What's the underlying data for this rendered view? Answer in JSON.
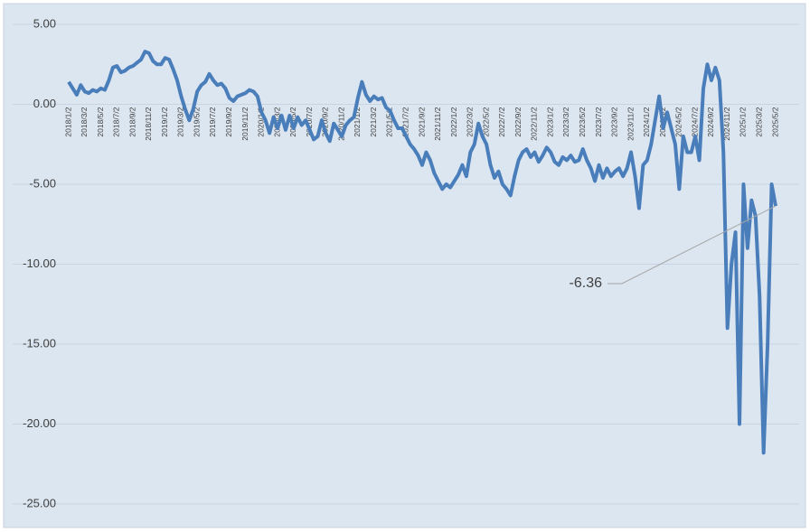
{
  "chart_data": {
    "type": "line",
    "categories": [
      "2018/1/2",
      null,
      null,
      null,
      "2018/3/2",
      null,
      null,
      null,
      "2018/5/2",
      null,
      null,
      null,
      "2018/7/2",
      null,
      null,
      null,
      "2018/9/2",
      null,
      null,
      null,
      "2018/11/2",
      null,
      null,
      null,
      "2019/1/2",
      null,
      null,
      null,
      "2019/3/2",
      null,
      null,
      null,
      "2019/5/2",
      null,
      null,
      null,
      "2019/7/2",
      null,
      null,
      null,
      "2019/9/2",
      null,
      null,
      null,
      "2019/11/2",
      null,
      null,
      null,
      "2020/1/2",
      null,
      null,
      null,
      "2020/3/2",
      null,
      null,
      null,
      "2020/5/2",
      null,
      null,
      null,
      "2020/7/2",
      null,
      null,
      null,
      "2020/9/2",
      null,
      null,
      null,
      "2020/11/2",
      null,
      null,
      null,
      "2021/1/2",
      null,
      null,
      null,
      "2021/3/2",
      null,
      null,
      null,
      "2021/5/2",
      null,
      null,
      null,
      "2021/7/2",
      null,
      null,
      null,
      "2021/9/2",
      null,
      null,
      null,
      "2021/11/2",
      null,
      null,
      null,
      "2022/1/2",
      null,
      null,
      null,
      "2022/3/2",
      null,
      null,
      null,
      "2022/5/2",
      null,
      null,
      null,
      "2022/7/2",
      null,
      null,
      null,
      "2022/9/2",
      null,
      null,
      null,
      "2022/11/2",
      null,
      null,
      null,
      "2023/1/2",
      null,
      null,
      null,
      "2023/3/2",
      null,
      null,
      null,
      "2023/5/2",
      null,
      null,
      null,
      "2023/7/2",
      null,
      null,
      null,
      "2023/9/2",
      null,
      null,
      null,
      "2023/11/2",
      null,
      null,
      null,
      "2024/1/2",
      null,
      null,
      null,
      "2024/3/2",
      null,
      null,
      null,
      "2024/5/2",
      null,
      null,
      null,
      "2024/7/2",
      null,
      null,
      null,
      "2024/9/2",
      null,
      null,
      null,
      "2024/11/2",
      null,
      null,
      null,
      "2025/1/2",
      null,
      null,
      null,
      "2025/3/2",
      null,
      null,
      null,
      "2025/5/2"
    ],
    "series": [
      {
        "color": "#4a7ebb",
        "values": [
          1.4,
          1.0,
          0.6,
          1.2,
          0.8,
          0.7,
          0.9,
          0.8,
          1.0,
          0.9,
          1.5,
          2.3,
          2.4,
          2.0,
          2.1,
          2.3,
          2.4,
          2.6,
          2.8,
          3.3,
          3.2,
          2.7,
          2.5,
          2.5,
          2.9,
          2.8,
          2.2,
          1.5,
          0.5,
          -0.3,
          -1.0,
          -0.3,
          0.8,
          1.2,
          1.4,
          1.9,
          1.5,
          1.2,
          1.3,
          1.0,
          0.4,
          0.2,
          0.5,
          0.6,
          0.7,
          0.9,
          0.8,
          0.5,
          -0.5,
          -1.0,
          -1.8,
          -0.8,
          -1.5,
          -0.7,
          -1.6,
          -0.7,
          -1.5,
          -0.8,
          -1.3,
          -1.0,
          -1.6,
          -2.2,
          -2.0,
          -1.0,
          -1.8,
          -2.3,
          -1.2,
          -1.6,
          -2.0,
          -1.3,
          -1.0,
          -0.8,
          0.4,
          1.4,
          0.6,
          0.2,
          0.5,
          0.3,
          0.4,
          -0.2,
          -0.4,
          -1.0,
          -1.5,
          -1.5,
          -2.0,
          -2.5,
          -2.8,
          -3.2,
          -3.8,
          -3.0,
          -3.5,
          -4.3,
          -4.8,
          -5.3,
          -5.0,
          -5.2,
          -4.8,
          -4.4,
          -3.8,
          -4.5,
          -3.0,
          -2.5,
          -1.2,
          -2.0,
          -2.5,
          -3.8,
          -4.6,
          -4.2,
          -5.0,
          -5.3,
          -5.7,
          -4.5,
          -3.5,
          -3.0,
          -2.8,
          -3.3,
          -3.0,
          -3.6,
          -3.2,
          -2.7,
          -3.0,
          -3.6,
          -3.8,
          -3.3,
          -3.5,
          -3.2,
          -3.6,
          -3.5,
          -2.8,
          -3.5,
          -4.0,
          -4.8,
          -3.8,
          -4.6,
          -4.0,
          -4.5,
          -4.2,
          -4.0,
          -4.5,
          -4.0,
          -3.0,
          -4.5,
          -6.5,
          -3.8,
          -3.5,
          -2.5,
          -1.0,
          0.5,
          -1.5,
          -0.5,
          -1.5,
          -2.5,
          -5.3,
          -2.0,
          -3.0,
          -3.0,
          -2.0,
          -3.5,
          1.0,
          2.5,
          1.5,
          2.3,
          1.5,
          -3.0,
          -14,
          -10,
          -8,
          -20,
          -5,
          -9,
          -6,
          -7,
          -12,
          -21.8,
          -15,
          -5,
          -6.36
        ]
      }
    ],
    "ylim": [
      -25,
      5
    ],
    "yticks": [
      {
        "value": -25,
        "label": "-25.00"
      },
      {
        "value": -20,
        "label": "-20.00"
      },
      {
        "value": -15,
        "label": "-15.00"
      },
      {
        "value": -10,
        "label": "-10.00"
      },
      {
        "value": -5,
        "label": "-5.00"
      },
      {
        "value": 0,
        "label": "0.00"
      },
      {
        "value": 5,
        "label": "5.00"
      }
    ],
    "grid": true
  }
}
